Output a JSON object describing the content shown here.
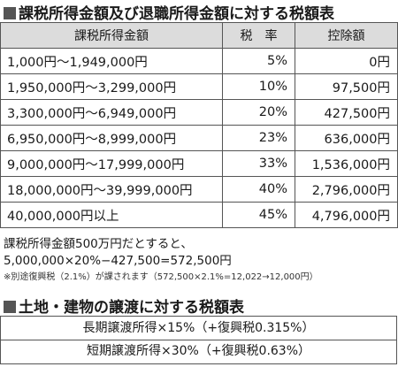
{
  "section1": {
    "title": "課税所得金額及び退職所得金額に対する税額表",
    "headers": [
      "課税所得金額",
      "税　率",
      "控除額"
    ],
    "rows": [
      {
        "range": "1,000円〜1,949,000円",
        "rate": "5%",
        "deduction": "0円"
      },
      {
        "range": "1,950,000円〜3,299,000円",
        "rate": "10%",
        "deduction": "97,500円"
      },
      {
        "range": "3,300,000円〜6,949,000円",
        "rate": "20%",
        "deduction": "427,500円"
      },
      {
        "range": "6,950,000円〜8,999,000円",
        "rate": "23%",
        "deduction": "636,000円"
      },
      {
        "range": "9,000,000円〜17,999,000円",
        "rate": "33%",
        "deduction": "1,536,000円"
      },
      {
        "range": "18,000,000円〜39,999,000円",
        "rate": "40%",
        "deduction": "2,796,000円"
      },
      {
        "range": "40,000,000円以上",
        "rate": "45%",
        "deduction": "4,796,000円"
      }
    ],
    "example_line1": "課税所得金額500万円だとすると、",
    "example_line2": "5,000,000×20%−427,500=572,500円",
    "footnote": "※別途復興税（2.1%）が課されます（572,500×2.1%=12,022→12,000円）"
  },
  "section2": {
    "title": "土地・建物の譲渡に対する税額表",
    "long_term": "長期譲渡所得×15%（+復興税0.315%）",
    "short_term": "短期譲渡所得×30%（+復興税0.63%）"
  },
  "colors": {
    "header_bg": "#dcdcdc",
    "border": "#555555",
    "title_square": "#555555"
  }
}
